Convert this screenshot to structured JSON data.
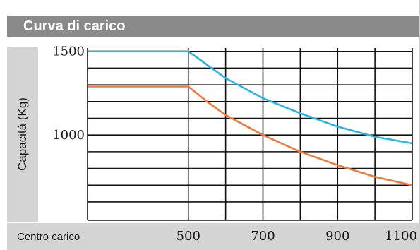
{
  "header": {
    "title": "Curva di carico"
  },
  "chart_data": {
    "type": "line",
    "ylabel": "Capacità (Kg)",
    "xlabel": "Centro carico",
    "x_ticks": [
      500,
      700,
      900,
      1100
    ],
    "y_ticks": [
      1500,
      1000
    ],
    "xlim": [
      230,
      1100
    ],
    "ylim": [
      490,
      1520
    ],
    "grid": true,
    "series": [
      {
        "color": "#2bb3e3",
        "x": [
          230,
          500,
          550,
          600,
          700,
          800,
          900,
          1000,
          1100
        ],
        "y": [
          1500,
          1500,
          1420,
          1340,
          1220,
          1130,
          1050,
          990,
          950
        ]
      },
      {
        "color": "#f07a3c",
        "x": [
          230,
          500,
          550,
          600,
          700,
          800,
          900,
          1000,
          1100
        ],
        "y": [
          1290,
          1290,
          1200,
          1120,
          1000,
          900,
          820,
          750,
          700
        ]
      }
    ]
  }
}
